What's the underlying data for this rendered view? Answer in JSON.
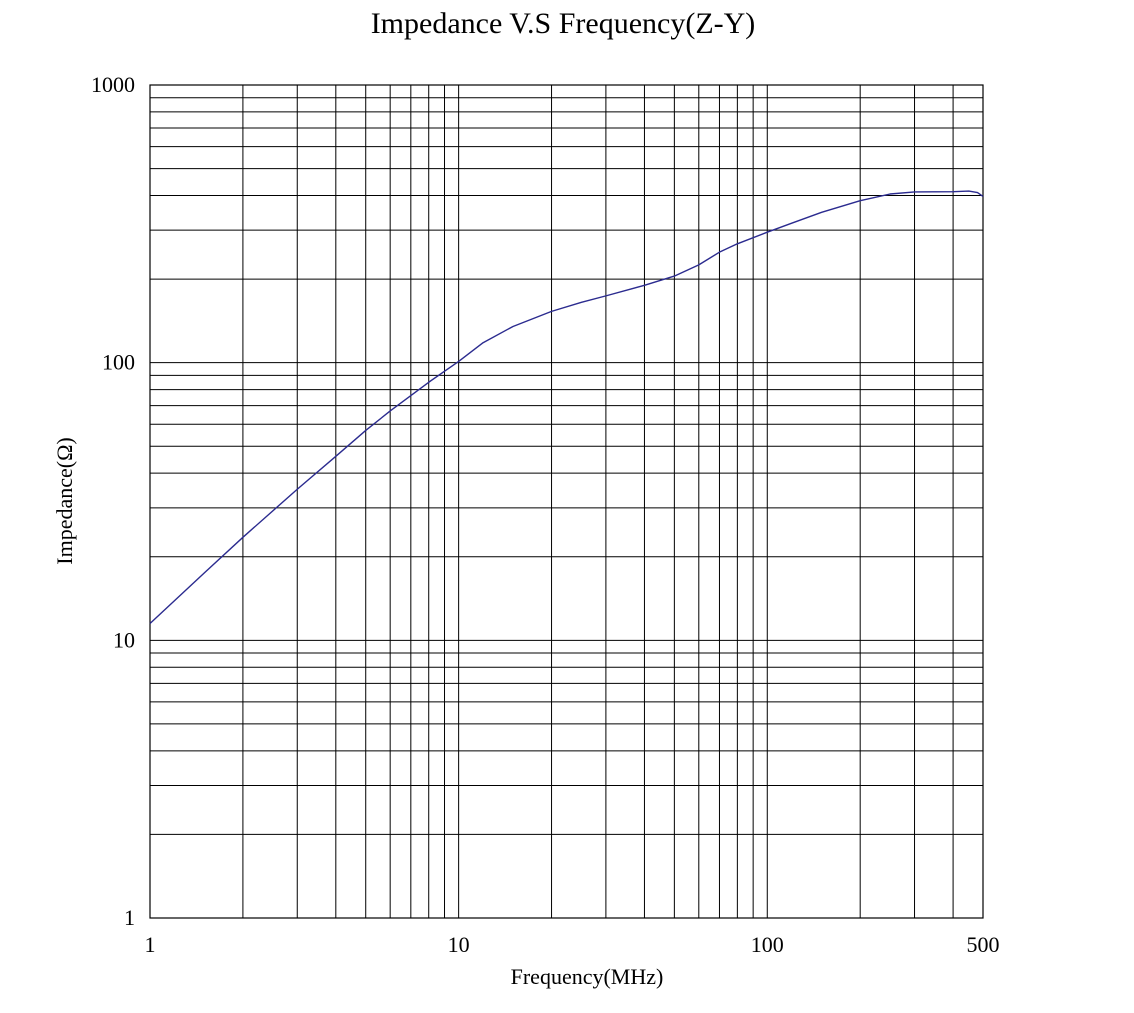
{
  "chart_data": {
    "type": "line",
    "title": "Impedance V.S Frequency(Z-Y)",
    "xlabel": "Frequency(MHz)",
    "ylabel": "Impedance(Ω)",
    "x_scale": "log",
    "y_scale": "log",
    "xlim": [
      1,
      500
    ],
    "ylim": [
      1,
      1000
    ],
    "x_ticks": [
      1,
      10,
      100,
      500
    ],
    "x_tick_labels": [
      "1",
      "10",
      "100",
      "500"
    ],
    "y_ticks": [
      1,
      10,
      100,
      1000
    ],
    "y_tick_labels": [
      "1",
      "10",
      "100",
      "1000"
    ],
    "grid": true,
    "legend": "none",
    "series": [
      {
        "color": "#2b2b8f",
        "x": [
          1,
          1.5,
          2,
          3,
          4,
          5,
          6,
          8,
          10,
          12,
          15,
          20,
          25,
          30,
          40,
          50,
          60,
          70,
          80,
          100,
          120,
          150,
          200,
          250,
          300,
          400,
          450,
          480,
          500
        ],
        "y": [
          11.5,
          17.5,
          23.5,
          35,
          46,
          57,
          67,
          85,
          101,
          118,
          135,
          153,
          165,
          174,
          190,
          205,
          225,
          250,
          268,
          295,
          318,
          348,
          383,
          405,
          412,
          413,
          415,
          410,
          397
        ]
      }
    ]
  }
}
